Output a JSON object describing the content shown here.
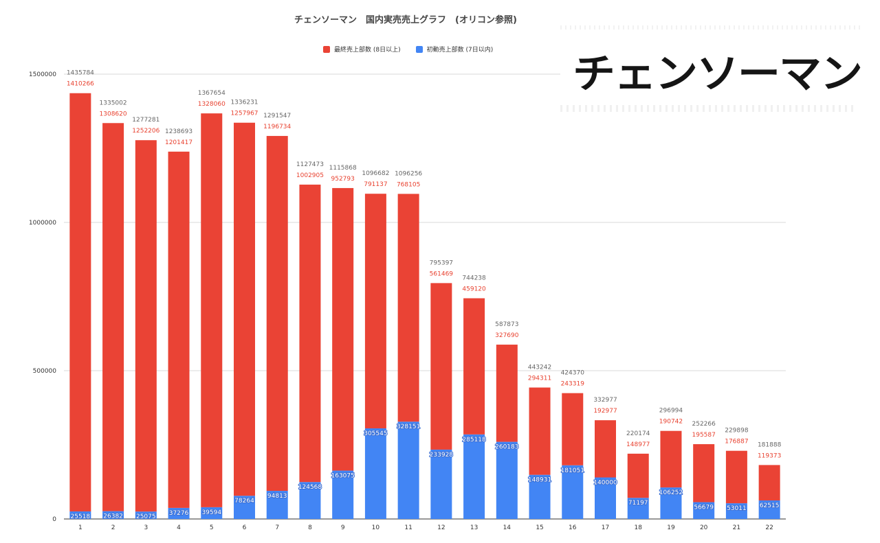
{
  "chart_data": {
    "type": "bar",
    "stacked": true,
    "title": "チェンソーマン　国内実売売上グラフ　(オリコン参照)",
    "categories": [
      "1",
      "2",
      "3",
      "4",
      "5",
      "6",
      "7",
      "8",
      "9",
      "10",
      "11",
      "12",
      "13",
      "14",
      "15",
      "16",
      "17",
      "18",
      "19",
      "20",
      "21",
      "22"
    ],
    "series": [
      {
        "name": "最終売上部数 (8日以上)",
        "color": "#ea4335",
        "values": [
          1410266,
          1308620,
          1252206,
          1201417,
          1328060,
          1257967,
          1196734,
          1002905,
          952793,
          791137,
          768105,
          561469,
          459120,
          327690,
          294311,
          243319,
          192977,
          148977,
          190742,
          195587,
          176887,
          119373
        ]
      },
      {
        "name": "初動売上部数 (7日以内)",
        "color": "#4285f4",
        "values": [
          25518,
          26382,
          25075,
          37276,
          39594,
          78264,
          94813,
          124568,
          163075,
          305545,
          328151,
          233928,
          285118,
          260183,
          148931,
          181051,
          140000,
          71197,
          106252,
          56679,
          53011,
          62515
        ]
      }
    ],
    "totals": [
      1435784,
      1335002,
      1277281,
      1238693,
      1367654,
      1336231,
      1291547,
      1127473,
      1115868,
      1096682,
      1096256,
      795397,
      744238,
      587873,
      443242,
      424370,
      332977,
      220174,
      296994,
      252266,
      229898,
      181888
    ],
    "yticks": [
      "0",
      "500000",
      "1000000",
      "1500000"
    ],
    "ylim": [
      0,
      1500000
    ],
    "grid": true,
    "legend": "top"
  },
  "logo": {
    "text": "チェンソーマン"
  }
}
